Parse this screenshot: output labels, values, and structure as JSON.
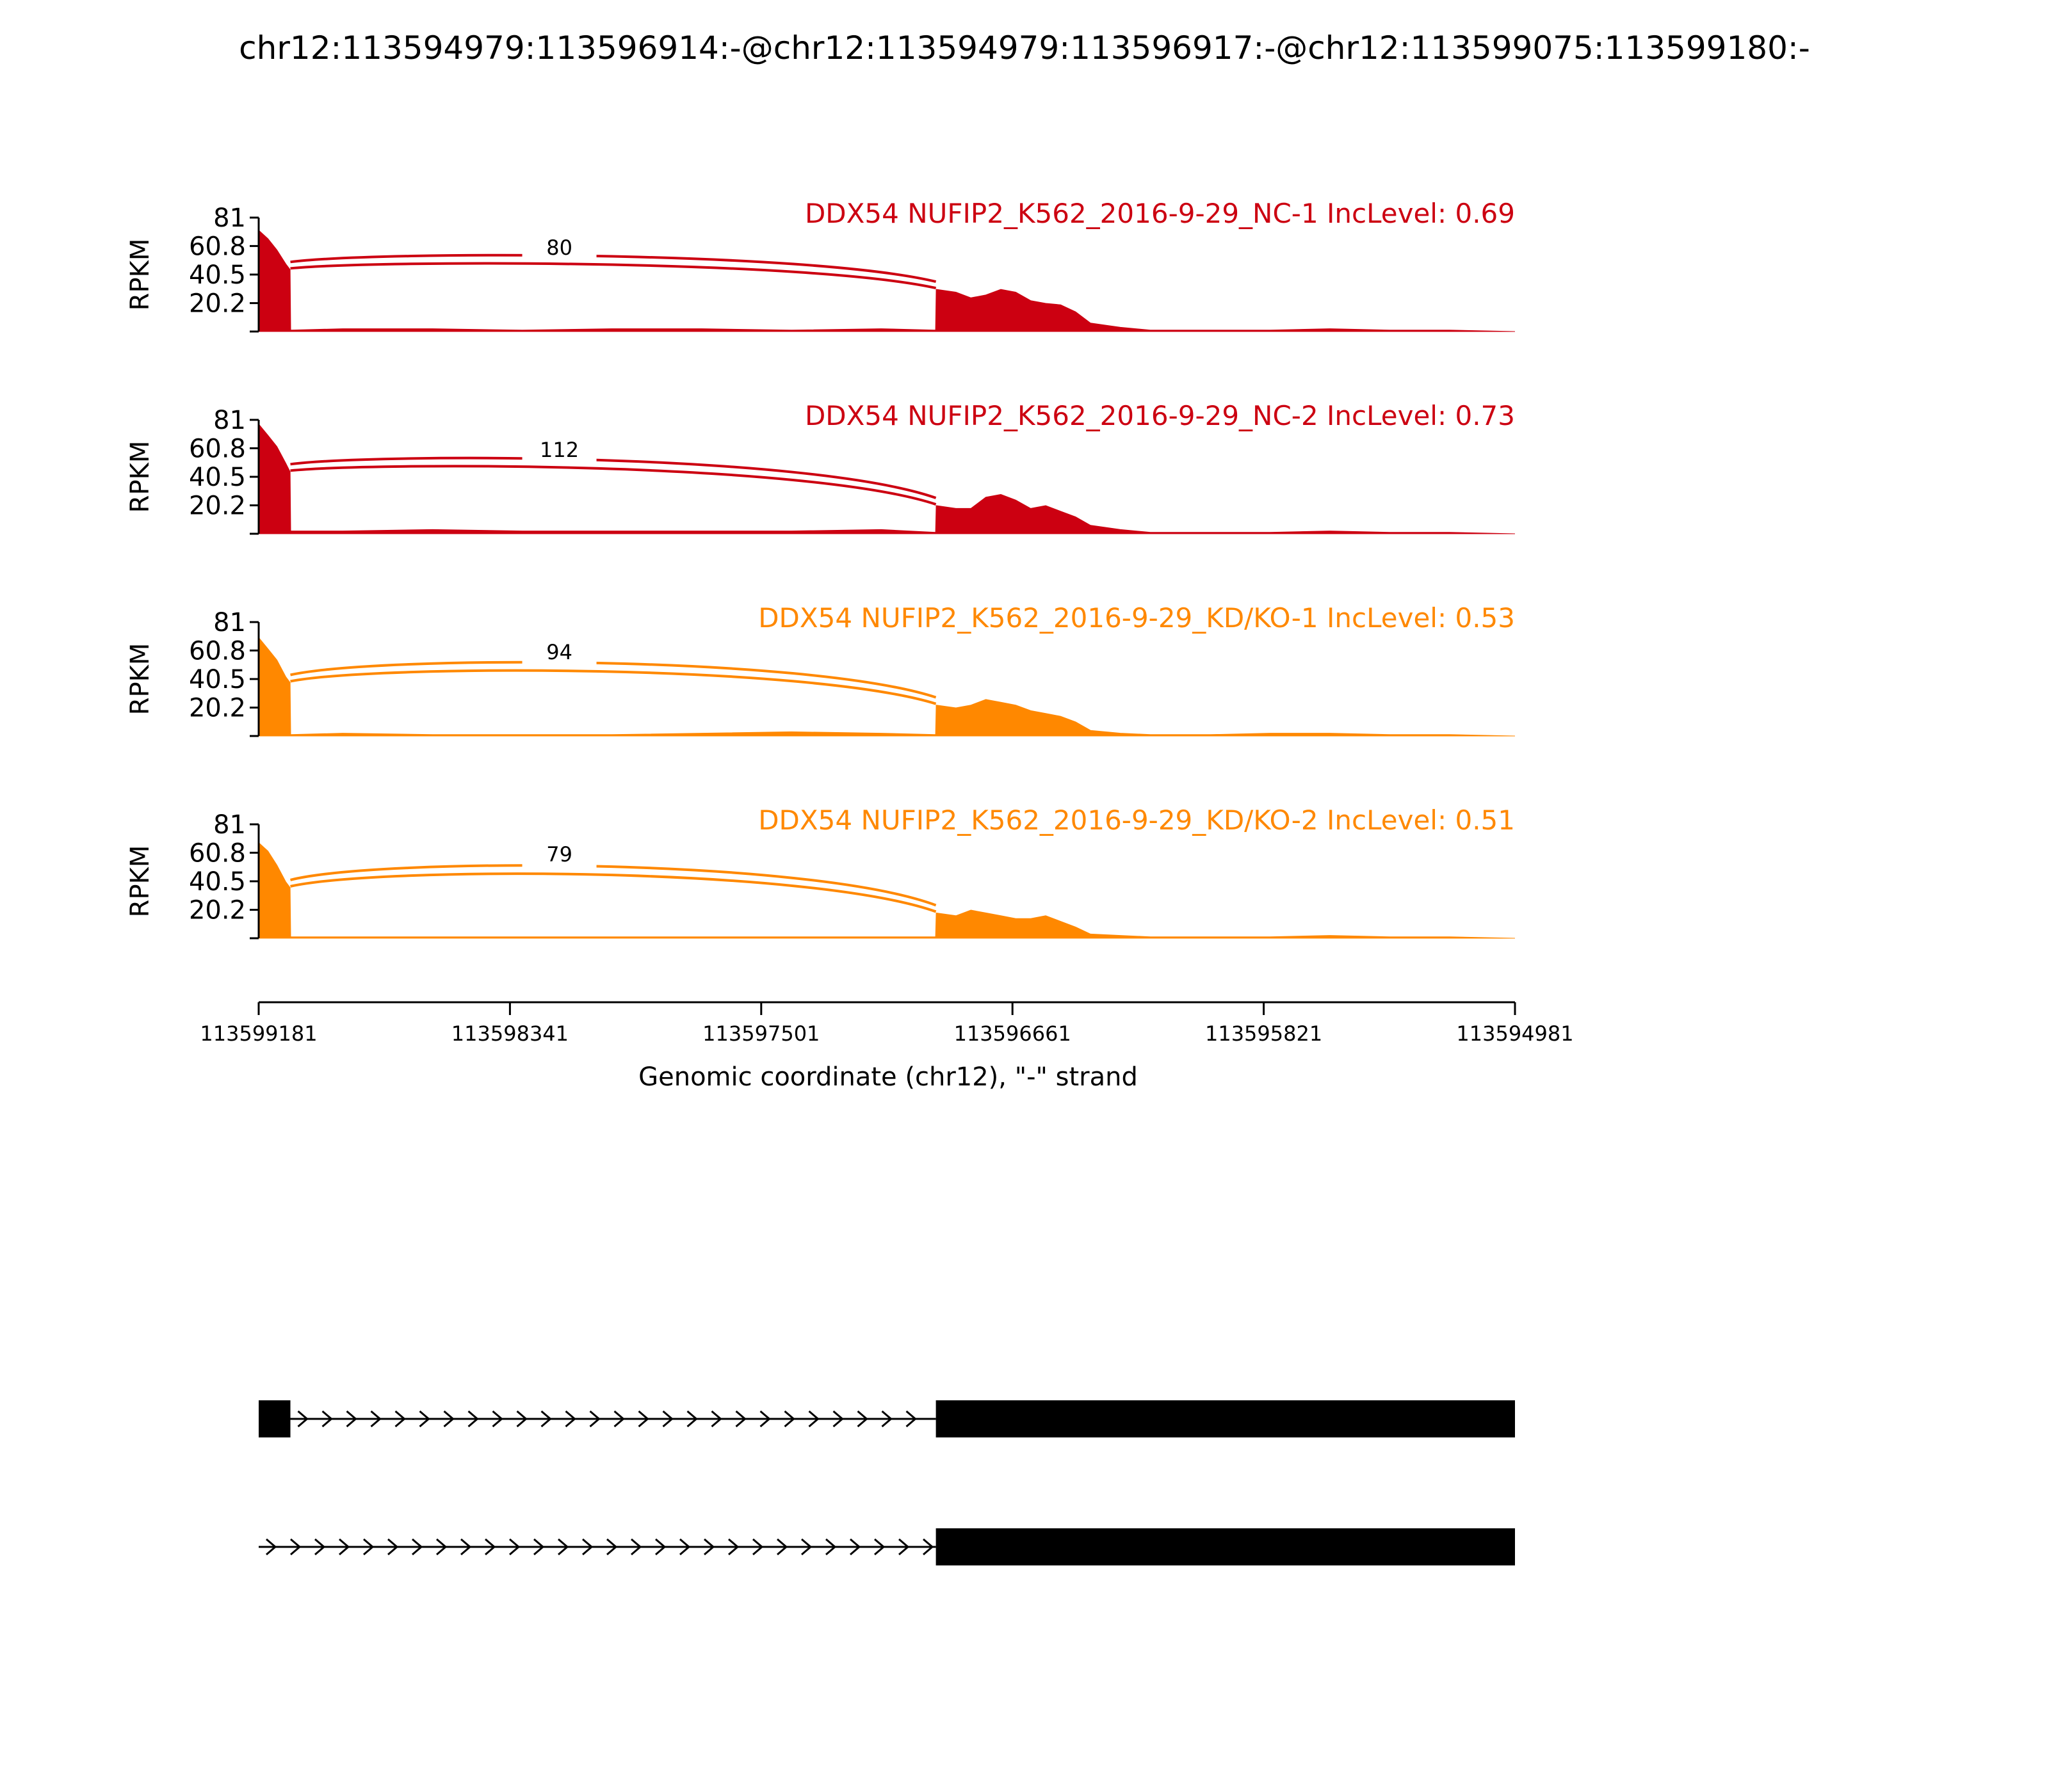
{
  "title": "chr12:113594979:113596914:-@chr12:113594979:113596917:-@chr12:113599075:113599180:-",
  "colors": {
    "nc": "#cc0011",
    "kd": "#ff8800",
    "axis": "#000000",
    "gene": "#000000"
  },
  "chart_data": {
    "type": "area",
    "title": "chr12:113594979:113596914:-@chr12:113594979:113596917:-@chr12:113599075:113599180:-",
    "ylabel": "RPKM",
    "xlabel": "Genomic coordinate (chr12), \"-\" strand",
    "ylim": [
      0,
      81
    ],
    "yticks": [
      "81",
      "60.8",
      "40.5",
      "20.2"
    ],
    "xlim": [
      113599181,
      113594981
    ],
    "xticks": [
      "113599181",
      "113598341",
      "113597501",
      "113596661",
      "113595821",
      "113594981"
    ],
    "exon_regions": [
      [
        113599181,
        113599075
      ],
      [
        113596917,
        113594981
      ]
    ],
    "coverage_x": [
      113599181,
      113599150,
      113599120,
      113599090,
      113599076,
      113599074,
      113598900,
      113598600,
      113598300,
      113598000,
      113597700,
      113597400,
      113597100,
      113596918,
      113596916,
      113596850,
      113596800,
      113596750,
      113596700,
      113596650,
      113596600,
      113596550,
      113596500,
      113596450,
      113596400,
      113596300,
      113596200,
      113596000,
      113595800,
      113595600,
      113595400,
      113595200,
      113594981
    ],
    "series": [
      {
        "name": "DDX54 NUFIP2_K562_2016-9-29_NC-1 IncLevel: 0.69",
        "group": "nc",
        "junction_count": "80",
        "y": [
          72,
          66,
          58,
          48,
          44,
          1,
          2,
          2,
          1,
          2,
          2,
          1,
          2,
          1,
          30,
          28,
          24,
          26,
          30,
          28,
          22,
          20,
          19,
          14,
          6,
          3,
          1,
          1,
          1,
          2,
          1,
          1,
          0
        ]
      },
      {
        "name": "DDX54 NUFIP2_K562_2016-9-29_NC-2 IncLevel: 0.73",
        "group": "nc",
        "junction_count": "112",
        "y": [
          78,
          70,
          62,
          50,
          44,
          2,
          2,
          3,
          2,
          2,
          2,
          2,
          3,
          1,
          20,
          18,
          18,
          26,
          28,
          24,
          18,
          20,
          16,
          12,
          6,
          3,
          1,
          1,
          1,
          2,
          1,
          1,
          0
        ]
      },
      {
        "name": "DDX54 NUFIP2_K562_2016-9-29_KD/KO-1 IncLevel: 0.53",
        "group": "kd",
        "junction_count": "94",
        "y": [
          70,
          62,
          54,
          42,
          38,
          1,
          2,
          1,
          1,
          1,
          2,
          3,
          2,
          1,
          22,
          20,
          22,
          26,
          24,
          22,
          18,
          16,
          14,
          10,
          4,
          2,
          1,
          1,
          2,
          2,
          1,
          1,
          0
        ]
      },
      {
        "name": "DDX54 NUFIP2_K562_2016-9-29_KD/KO-2 IncLevel: 0.51",
        "group": "kd",
        "junction_count": "79",
        "y": [
          68,
          62,
          52,
          40,
          36,
          1,
          1,
          1,
          1,
          1,
          1,
          1,
          1,
          1,
          18,
          16,
          20,
          18,
          16,
          14,
          14,
          16,
          12,
          8,
          3,
          2,
          1,
          1,
          1,
          2,
          1,
          1,
          0
        ]
      }
    ],
    "isoforms": [
      {
        "exons": [
          [
            113599181,
            113599075
          ],
          [
            113596917,
            113594981
          ]
        ]
      },
      {
        "exons": [
          [
            113596917,
            113594981
          ]
        ]
      }
    ]
  }
}
